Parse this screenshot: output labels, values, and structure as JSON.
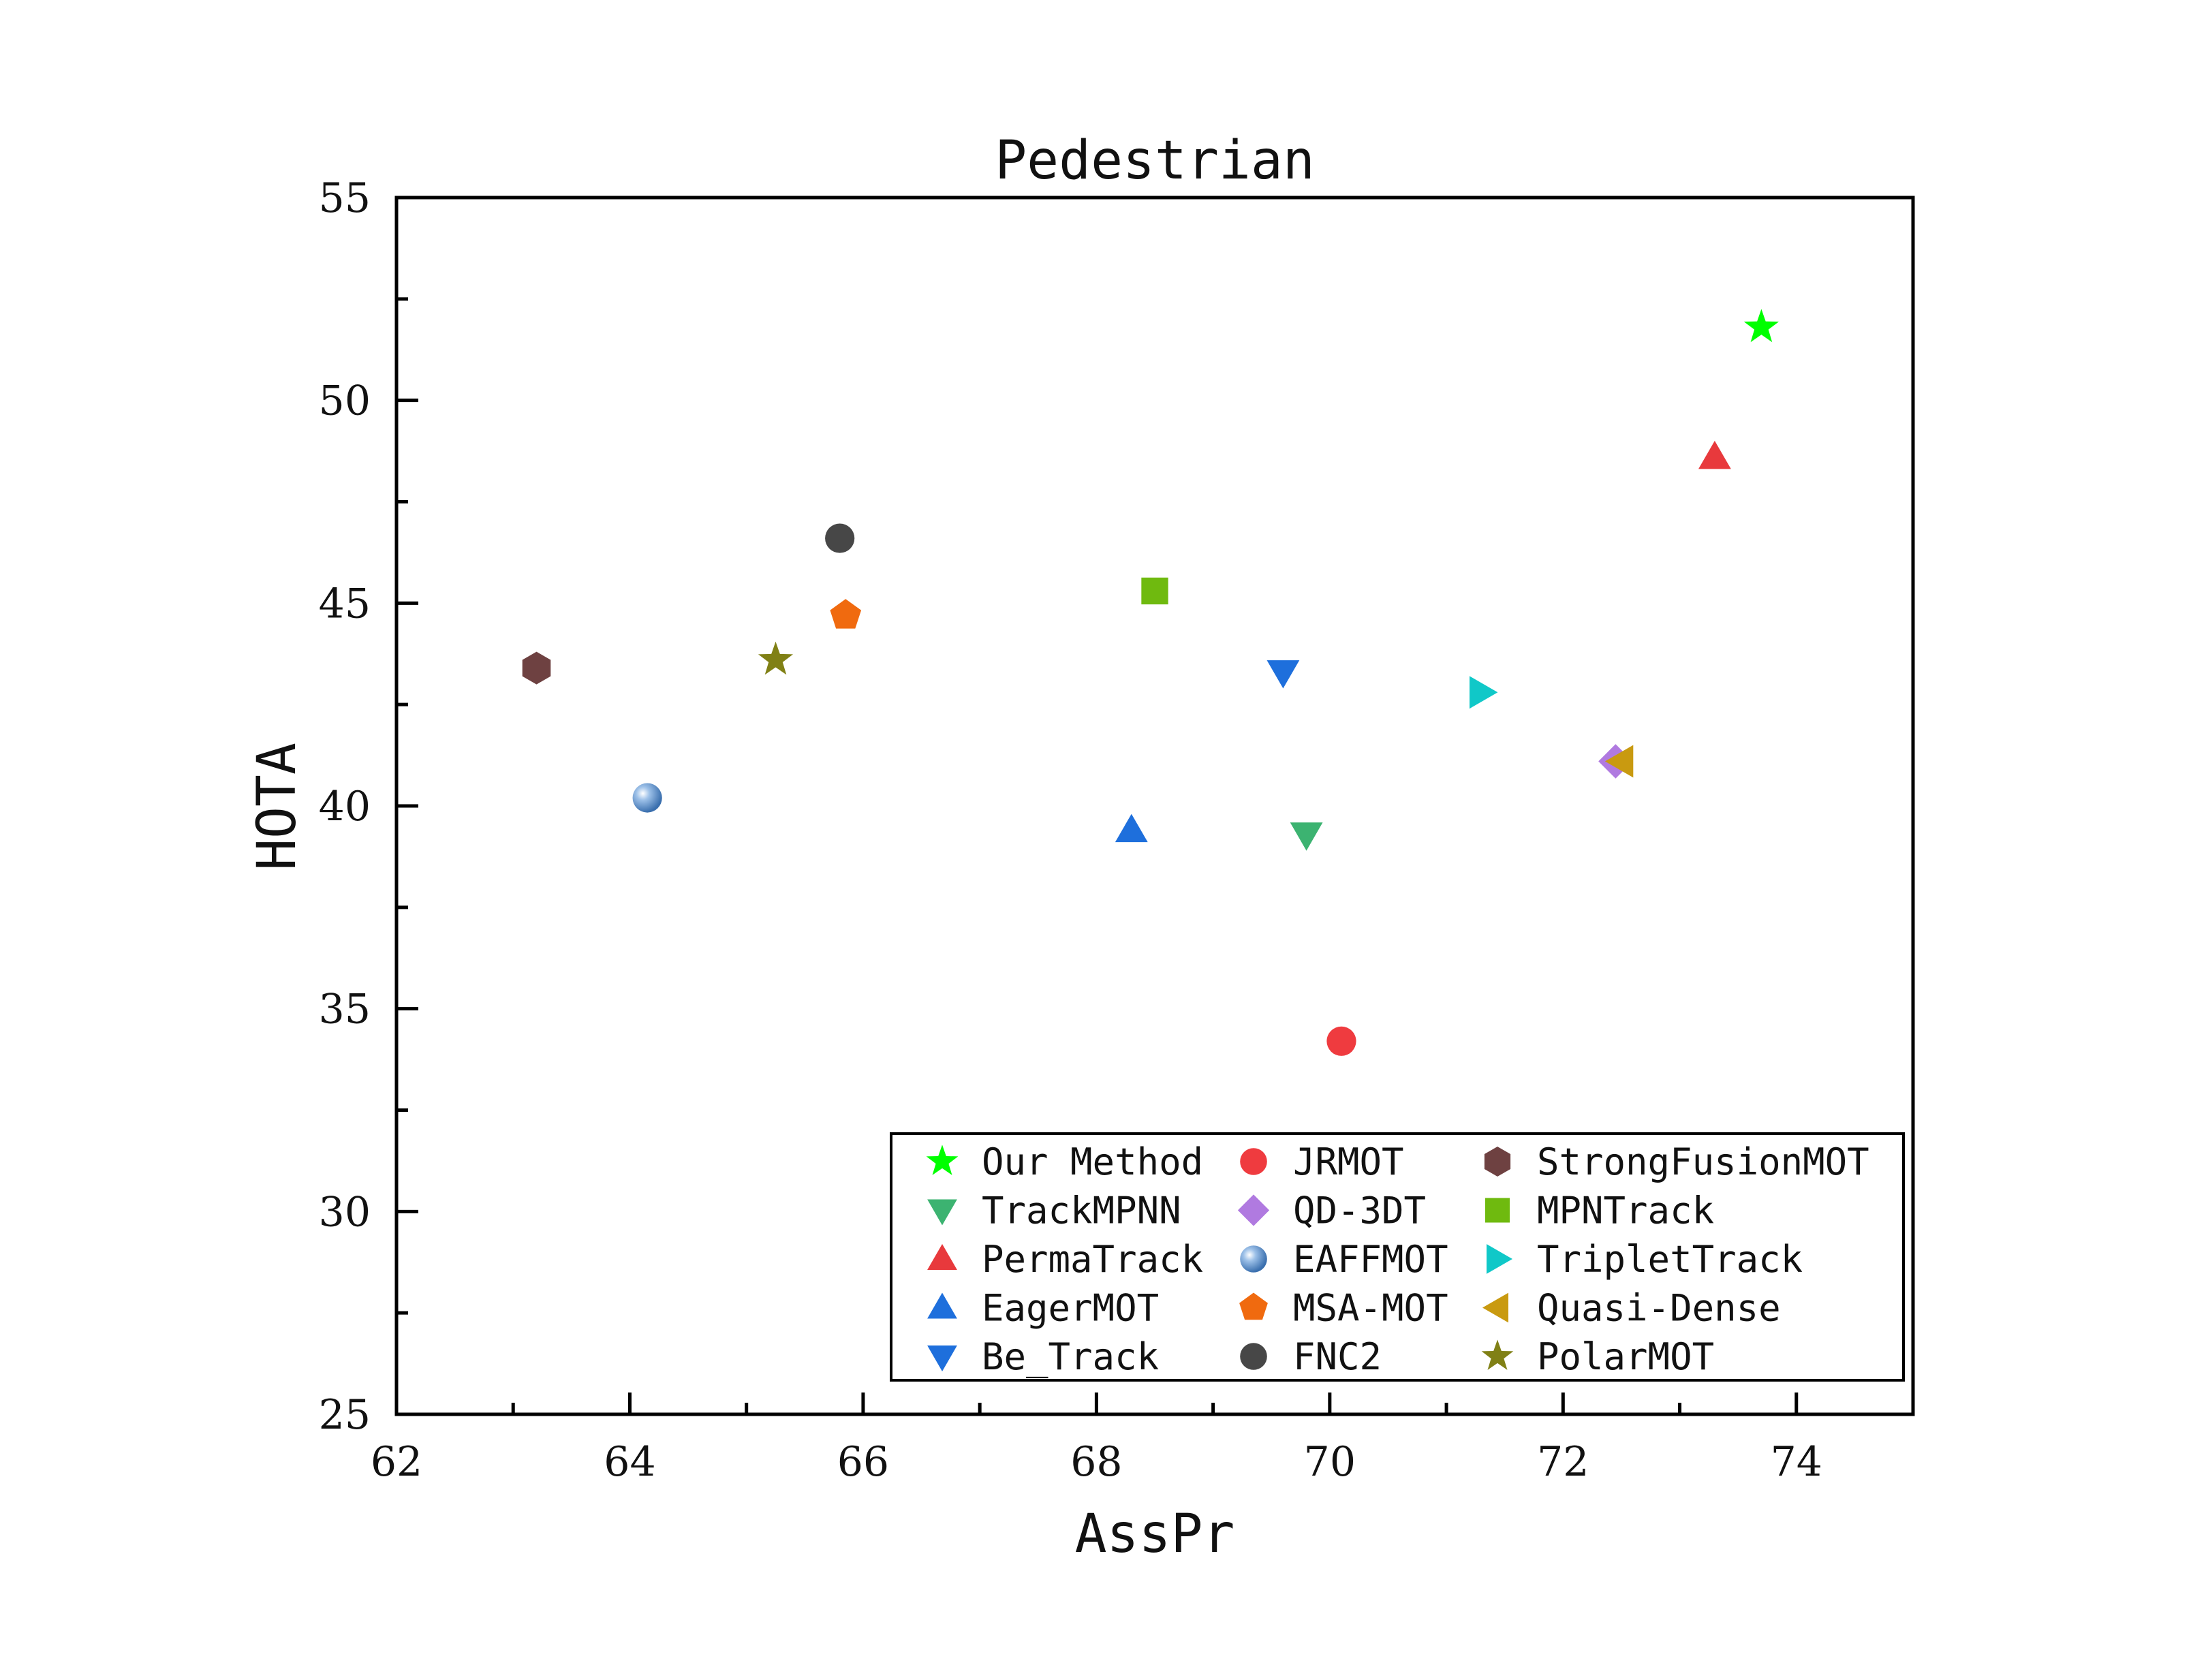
{
  "chart_data": {
    "type": "scatter",
    "title": "Pedestrian",
    "xlabel": "AssPr",
    "ylabel": "HOTA",
    "xlim": [
      62,
      75
    ],
    "ylim": [
      25,
      55
    ],
    "xticks": [
      "62",
      "64",
      "66",
      "68",
      "70",
      "72",
      "74"
    ],
    "yticks": [
      "25",
      "30",
      "35",
      "40",
      "45",
      "50",
      "55"
    ],
    "grid": false,
    "legend_position": "bottom-right",
    "series": [
      {
        "name": "Our Method",
        "marker": "star",
        "color": "#00ff00",
        "x": 73.7,
        "y": 51.8
      },
      {
        "name": "TrackMPNN",
        "marker": "triangle-down",
        "color": "#3cb371",
        "x": 69.8,
        "y": 39.3
      },
      {
        "name": "PermaTrack",
        "marker": "triangle-up",
        "color": "#e8393c",
        "x": 73.3,
        "y": 48.6
      },
      {
        "name": "EagerMOT",
        "marker": "triangle-up",
        "color": "#1e6fdc",
        "x": 68.3,
        "y": 39.4
      },
      {
        "name": "Be_Track",
        "marker": "triangle-down",
        "color": "#1e6fdc",
        "x": 69.6,
        "y": 43.3
      },
      {
        "name": "JRMOT",
        "marker": "circle",
        "color": "#ef3b3f",
        "x": 70.1,
        "y": 34.2
      },
      {
        "name": "QD-3DT",
        "marker": "diamond",
        "color": "#b07ae0",
        "x": 72.45,
        "y": 41.1
      },
      {
        "name": "EAFFMOT",
        "marker": "sphere",
        "color": "#6b9bd2",
        "x": 64.15,
        "y": 40.2
      },
      {
        "name": "MSA-MOT",
        "marker": "pentagon",
        "color": "#f06a0f",
        "x": 65.85,
        "y": 44.7
      },
      {
        "name": "FNC2",
        "marker": "circle",
        "color": "#474747",
        "x": 65.8,
        "y": 46.6
      },
      {
        "name": "StrongFusionMOT",
        "marker": "hexagon",
        "color": "#6e4141",
        "x": 63.2,
        "y": 43.4
      },
      {
        "name": "MPNTrack",
        "marker": "square",
        "color": "#6fba0f",
        "x": 68.5,
        "y": 45.3
      },
      {
        "name": "TripletTrack",
        "marker": "triangle-right",
        "color": "#10c8c8",
        "x": 71.3,
        "y": 42.8
      },
      {
        "name": "Quasi-Dense",
        "marker": "triangle-left",
        "color": "#c99a10",
        "x": 72.5,
        "y": 41.1
      },
      {
        "name": "PolarMOT",
        "marker": "star",
        "color": "#808015",
        "x": 65.25,
        "y": 43.6
      }
    ]
  }
}
